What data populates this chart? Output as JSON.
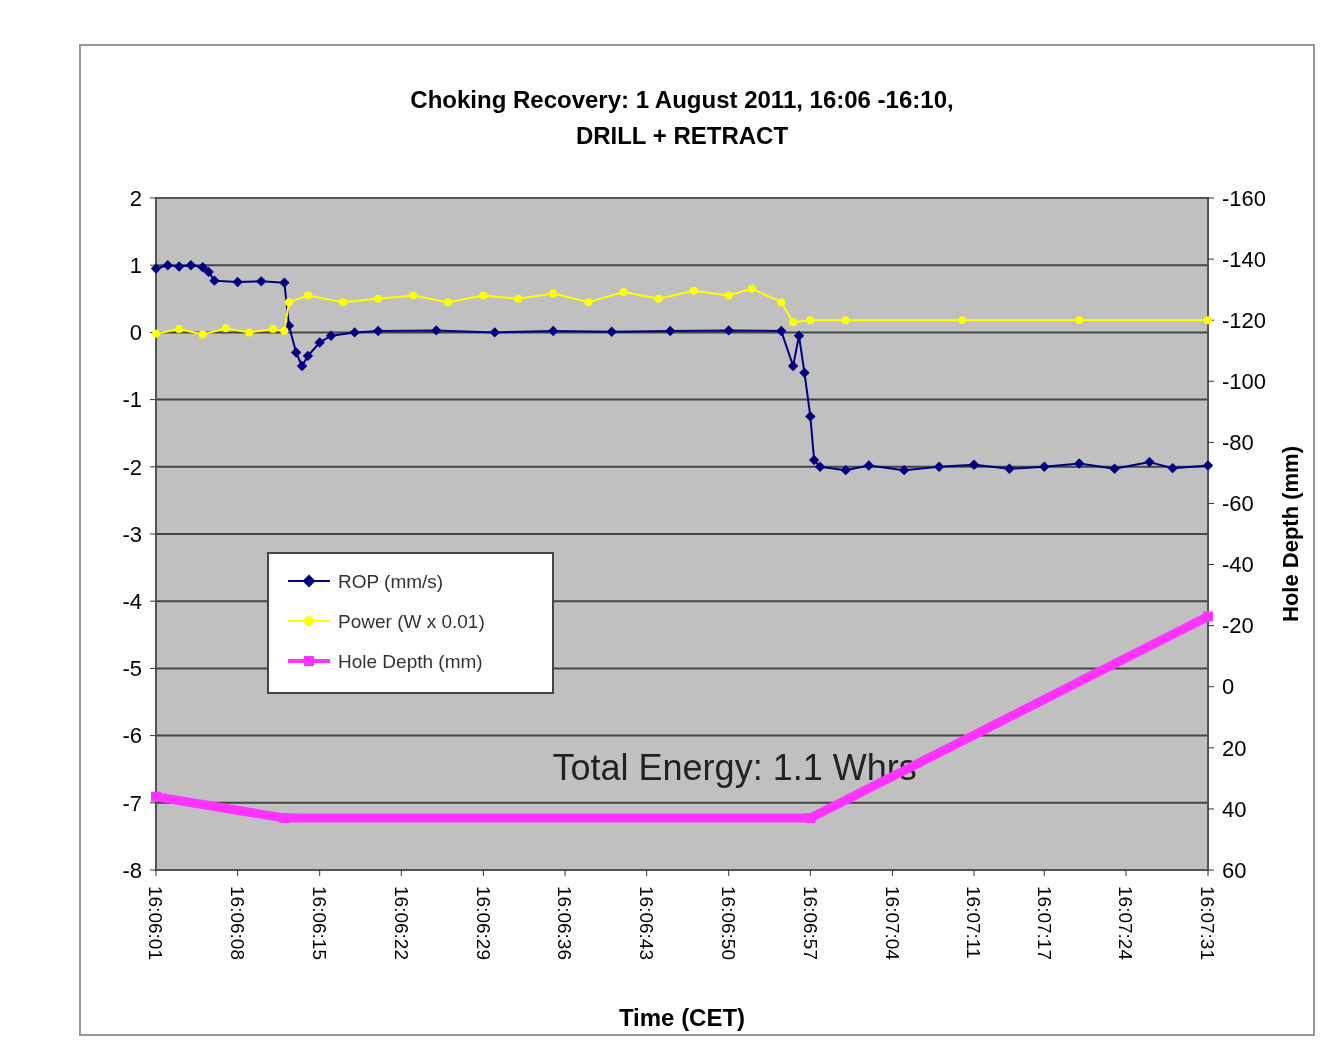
{
  "chart_data": {
    "type": "line",
    "title": "Choking Recovery:  1 August 2011, 16:06 -16:10,\nDRILL + RETRACT",
    "xlabel": "Time (CET)",
    "y2label": "Hole Depth (mm)",
    "annotations": [
      "Total Energy: 1.1 Whrs"
    ],
    "xlim": [
      16.10028,
      16.12528
    ],
    "xticks": [
      {
        "value": 16.10028,
        "label": "16:06:01"
      },
      {
        "value": 16.10222,
        "label": "16:06:08"
      },
      {
        "value": 16.10417,
        "label": "16:06:15"
      },
      {
        "value": 16.10611,
        "label": "16:06:22"
      },
      {
        "value": 16.10806,
        "label": "16:06:29"
      },
      {
        "value": 16.11,
        "label": "16:06:36"
      },
      {
        "value": 16.11194,
        "label": "16:06:43"
      },
      {
        "value": 16.11389,
        "label": "16:06:50"
      },
      {
        "value": 16.11583,
        "label": "16:06:57"
      },
      {
        "value": 16.11778,
        "label": "16:07:04"
      },
      {
        "value": 16.11972,
        "label": "16:07:11"
      },
      {
        "value": 16.12139,
        "label": "16:07:17"
      },
      {
        "value": 16.12333,
        "label": "16:07:24"
      },
      {
        "value": 16.12528,
        "label": "16:07:31"
      }
    ],
    "ylim": [
      -8,
      2
    ],
    "yticks": [
      -8,
      -7,
      -6,
      -5,
      -4,
      -3,
      -2,
      -1,
      0,
      1,
      2
    ],
    "y2lim": [
      60,
      -160
    ],
    "y2ticks": [
      60,
      40,
      20,
      0,
      -20,
      -40,
      -60,
      -80,
      -100,
      -120,
      -140,
      -160
    ],
    "grid": "y",
    "legend": "left",
    "series": [
      {
        "name": "ROP (mm/s)",
        "color": "#000080",
        "marker": "diamond",
        "x": [
          16.10028,
          16.10056,
          16.10083,
          16.10111,
          16.10139,
          16.10153,
          16.10167,
          16.10222,
          16.10278,
          16.10333,
          16.10344,
          16.10361,
          16.10375,
          16.10389,
          16.10417,
          16.10444,
          16.105,
          16.10556,
          16.10694,
          16.10833,
          16.10972,
          16.11111,
          16.1125,
          16.11389,
          16.11514,
          16.11542,
          16.11556,
          16.11569,
          16.11583,
          16.11592,
          16.11606,
          16.11667,
          16.11722,
          16.11806,
          16.11889,
          16.11972,
          16.12056,
          16.12139,
          16.12222,
          16.12306,
          16.12389,
          16.12444,
          16.12528
        ],
        "values": [
          0.95,
          1.0,
          0.98,
          1.0,
          0.97,
          0.9,
          0.77,
          0.75,
          0.76,
          0.74,
          0.1,
          -0.3,
          -0.5,
          -0.35,
          -0.15,
          -0.05,
          0,
          0.02,
          0.03,
          0,
          0.02,
          0.01,
          0.02,
          0.03,
          0.02,
          -0.5,
          -0.05,
          -0.6,
          -1.25,
          -1.9,
          -2.0,
          -2.05,
          -1.98,
          -2.05,
          -2.0,
          -1.97,
          -2.03,
          -2.0,
          -1.95,
          -2.03,
          -1.93,
          -2.02,
          -1.98
        ]
      },
      {
        "name": "Power (W x 0.01)",
        "color": "#ffff00",
        "marker": "circle",
        "x": [
          16.10028,
          16.10083,
          16.10139,
          16.10194,
          16.1025,
          16.10306,
          16.10333,
          16.10344,
          16.10389,
          16.10472,
          16.10556,
          16.10639,
          16.10722,
          16.10806,
          16.10889,
          16.10972,
          16.11056,
          16.11139,
          16.11222,
          16.11306,
          16.11389,
          16.11444,
          16.11514,
          16.11542,
          16.11583,
          16.11667,
          16.11944,
          16.12222,
          16.12528
        ],
        "values": [
          -0.02,
          0.05,
          -0.03,
          0.06,
          0,
          0.05,
          0.02,
          0.45,
          0.55,
          0.45,
          0.5,
          0.55,
          0.45,
          0.55,
          0.5,
          0.58,
          0.45,
          0.6,
          0.5,
          0.62,
          0.55,
          0.65,
          0.45,
          0.15,
          0.18,
          0.18,
          0.18,
          0.18,
          0.18
        ]
      },
      {
        "name": "Hole Depth (mm)",
        "color": "#ff33ff",
        "marker": "square",
        "axis": "y2",
        "x": [
          16.10028,
          16.10333,
          16.11583,
          16.12528
        ],
        "values": [
          36,
          43,
          43,
          -23
        ]
      }
    ]
  }
}
